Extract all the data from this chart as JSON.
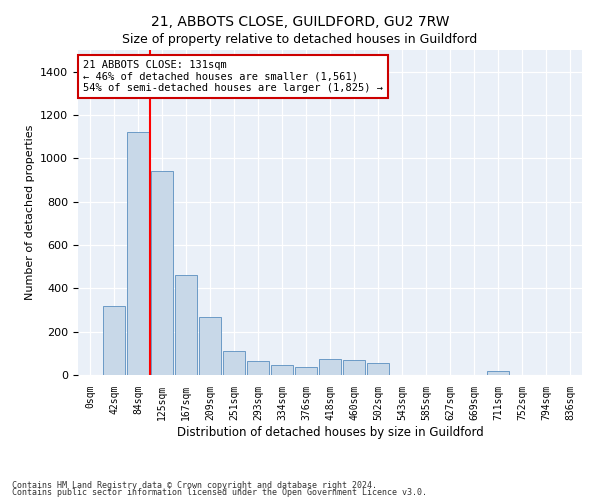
{
  "title": "21, ABBOTS CLOSE, GUILDFORD, GU2 7RW",
  "subtitle": "Size of property relative to detached houses in Guildford",
  "xlabel": "Distribution of detached houses by size in Guildford",
  "ylabel": "Number of detached properties",
  "bar_color": "#c8d8e8",
  "bar_edge_color": "#5a8fc0",
  "background_color": "#eaf0f8",
  "categories": [
    "0sqm",
    "42sqm",
    "84sqm",
    "125sqm",
    "167sqm",
    "209sqm",
    "251sqm",
    "293sqm",
    "334sqm",
    "376sqm",
    "418sqm",
    "460sqm",
    "502sqm",
    "543sqm",
    "585sqm",
    "627sqm",
    "669sqm",
    "711sqm",
    "752sqm",
    "794sqm",
    "836sqm"
  ],
  "values": [
    0,
    320,
    1120,
    940,
    460,
    270,
    110,
    65,
    45,
    35,
    75,
    70,
    55,
    0,
    0,
    0,
    0,
    20,
    0,
    0,
    0
  ],
  "ylim": [
    0,
    1500
  ],
  "yticks": [
    0,
    200,
    400,
    600,
    800,
    1000,
    1200,
    1400
  ],
  "red_line_x": 2.5,
  "annotation_text": "21 ABBOTS CLOSE: 131sqm\n← 46% of detached houses are smaller (1,561)\n54% of semi-detached houses are larger (1,825) →",
  "annotation_box_color": "#ffffff",
  "annotation_border_color": "#cc0000",
  "footer1": "Contains HM Land Registry data © Crown copyright and database right 2024.",
  "footer2": "Contains public sector information licensed under the Open Government Licence v3.0."
}
